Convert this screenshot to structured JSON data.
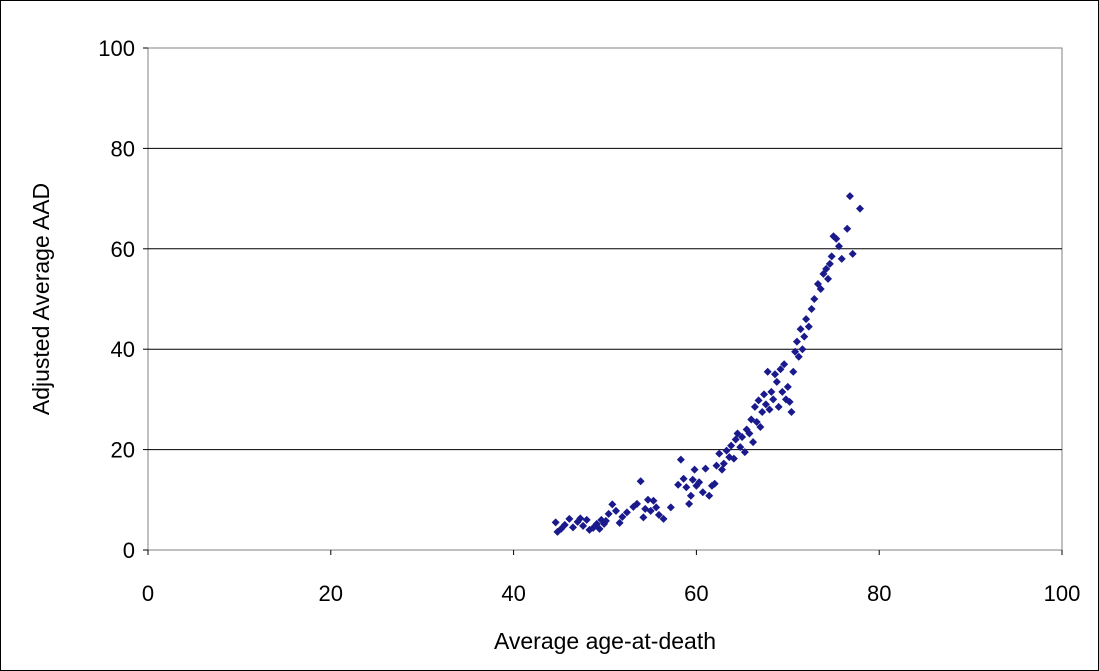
{
  "chart_data": {
    "type": "scatter",
    "title": "",
    "xlabel": "Average age-at-death",
    "ylabel": "Adjusted Average AAD",
    "xlim": [
      0,
      100
    ],
    "ylim": [
      0,
      100
    ],
    "x_ticks": [
      "0",
      "20",
      "40",
      "60",
      "80",
      "100"
    ],
    "y_ticks": [
      "0",
      "20",
      "40",
      "60",
      "80",
      "100"
    ],
    "grid": "horizontal",
    "legend": "none",
    "colors": {
      "marker": "#1a1a8c",
      "gridline": "#000000",
      "plot_border": "#808080"
    },
    "series": [
      {
        "marker": "diamond",
        "points": [
          [
            44.6,
            5.5
          ],
          [
            44.8,
            3.6
          ],
          [
            45.2,
            4.2
          ],
          [
            45.6,
            5.0
          ],
          [
            46.1,
            6.2
          ],
          [
            46.5,
            4.5
          ],
          [
            47.0,
            5.6
          ],
          [
            47.3,
            6.3
          ],
          [
            47.6,
            4.8
          ],
          [
            48.0,
            6.0
          ],
          [
            48.3,
            4.0
          ],
          [
            48.7,
            4.4
          ],
          [
            49.1,
            5.2
          ],
          [
            49.4,
            4.2
          ],
          [
            49.6,
            6.0
          ],
          [
            49.9,
            5.2
          ],
          [
            50.1,
            5.8
          ],
          [
            50.4,
            7.2
          ],
          [
            50.8,
            9.1
          ],
          [
            51.2,
            7.8
          ],
          [
            51.6,
            5.4
          ],
          [
            51.9,
            6.6
          ],
          [
            52.4,
            7.5
          ],
          [
            53.1,
            8.6
          ],
          [
            53.5,
            9.2
          ],
          [
            53.9,
            13.7
          ],
          [
            54.2,
            6.5
          ],
          [
            54.4,
            8.2
          ],
          [
            54.7,
            10.0
          ],
          [
            55.0,
            7.8
          ],
          [
            55.3,
            9.8
          ],
          [
            55.6,
            8.5
          ],
          [
            55.9,
            7.0
          ],
          [
            56.4,
            6.2
          ],
          [
            57.2,
            8.5
          ],
          [
            58.0,
            13.0
          ],
          [
            58.3,
            18.0
          ],
          [
            58.6,
            14.2
          ],
          [
            58.9,
            12.5
          ],
          [
            59.2,
            9.2
          ],
          [
            59.4,
            10.8
          ],
          [
            59.6,
            14.0
          ],
          [
            59.8,
            16.0
          ],
          [
            60.0,
            12.8
          ],
          [
            60.3,
            13.5
          ],
          [
            60.7,
            11.5
          ],
          [
            61.0,
            16.2
          ],
          [
            61.4,
            10.8
          ],
          [
            61.7,
            12.8
          ],
          [
            62.0,
            13.2
          ],
          [
            62.2,
            16.8
          ],
          [
            62.5,
            19.2
          ],
          [
            62.8,
            16.0
          ],
          [
            63.0,
            17.2
          ],
          [
            63.3,
            19.8
          ],
          [
            63.6,
            18.5
          ],
          [
            63.8,
            20.8
          ],
          [
            64.1,
            18.2
          ],
          [
            64.3,
            22.0
          ],
          [
            64.5,
            23.2
          ],
          [
            64.8,
            20.5
          ],
          [
            65.0,
            22.5
          ],
          [
            65.3,
            19.5
          ],
          [
            65.5,
            24.0
          ],
          [
            65.8,
            23.2
          ],
          [
            66.0,
            26.0
          ],
          [
            66.2,
            21.5
          ],
          [
            66.4,
            28.5
          ],
          [
            66.6,
            25.5
          ],
          [
            66.8,
            29.8
          ],
          [
            67.0,
            24.5
          ],
          [
            67.2,
            27.5
          ],
          [
            67.4,
            31.0
          ],
          [
            67.6,
            29.0
          ],
          [
            67.8,
            35.5
          ],
          [
            68.0,
            28.0
          ],
          [
            68.2,
            31.5
          ],
          [
            68.4,
            30.0
          ],
          [
            68.6,
            35.0
          ],
          [
            68.8,
            33.5
          ],
          [
            69.0,
            28.5
          ],
          [
            69.2,
            36.0
          ],
          [
            69.4,
            31.5
          ],
          [
            69.6,
            37.0
          ],
          [
            69.8,
            30.0
          ],
          [
            70.0,
            32.5
          ],
          [
            70.2,
            29.5
          ],
          [
            70.4,
            27.5
          ],
          [
            70.6,
            35.5
          ],
          [
            70.8,
            39.5
          ],
          [
            71.0,
            41.5
          ],
          [
            71.2,
            38.5
          ],
          [
            71.4,
            44.0
          ],
          [
            71.6,
            40.0
          ],
          [
            71.8,
            42.5
          ],
          [
            72.0,
            46.0
          ],
          [
            72.3,
            44.5
          ],
          [
            72.6,
            48.0
          ],
          [
            72.9,
            50.0
          ],
          [
            73.3,
            53.0
          ],
          [
            73.6,
            52.0
          ],
          [
            73.9,
            55.0
          ],
          [
            74.2,
            56.0
          ],
          [
            74.4,
            54.0
          ],
          [
            74.6,
            57.0
          ],
          [
            74.8,
            58.5
          ],
          [
            75.0,
            62.5
          ],
          [
            75.3,
            62.0
          ],
          [
            75.6,
            60.5
          ],
          [
            75.9,
            58.0
          ],
          [
            76.5,
            64.0
          ],
          [
            76.8,
            70.5
          ],
          [
            77.1,
            59.0
          ],
          [
            77.9,
            68.0
          ]
        ]
      }
    ]
  }
}
